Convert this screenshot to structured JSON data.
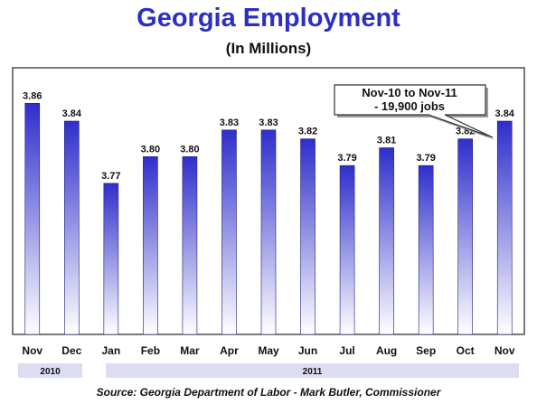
{
  "chart_data": {
    "type": "bar",
    "title": "Georgia Employment",
    "subtitle": "(In Millions)",
    "categories": [
      "Nov",
      "Dec",
      "Jan",
      "Feb",
      "Mar",
      "Apr",
      "May",
      "Jun",
      "Jul",
      "Aug",
      "Sep",
      "Oct",
      "Nov"
    ],
    "values": [
      3.86,
      3.84,
      3.77,
      3.8,
      3.8,
      3.83,
      3.83,
      3.82,
      3.79,
      3.81,
      3.79,
      3.82,
      3.84
    ],
    "value_labels": [
      "3.86",
      "3.84",
      "3.77",
      "3.80",
      "3.80",
      "3.83",
      "3.83",
      "3.82",
      "3.79",
      "3.81",
      "3.79",
      "3.82",
      "3.84"
    ],
    "year_groups": [
      {
        "label": "2010",
        "start": 0,
        "end": 1
      },
      {
        "label": "2011",
        "start": 2,
        "end": 12
      }
    ],
    "annotation": {
      "line1": "Nov-10 to Nov-11",
      "line2": "- 19,900 jobs"
    },
    "ylim": [
      3.6,
      3.9
    ],
    "grid": false,
    "bar_color_top": "#2e2ecc",
    "bar_color_bottom": "#ffffff"
  },
  "source": "Source: Georgia Department of Labor - Mark Butler, Commissioner"
}
